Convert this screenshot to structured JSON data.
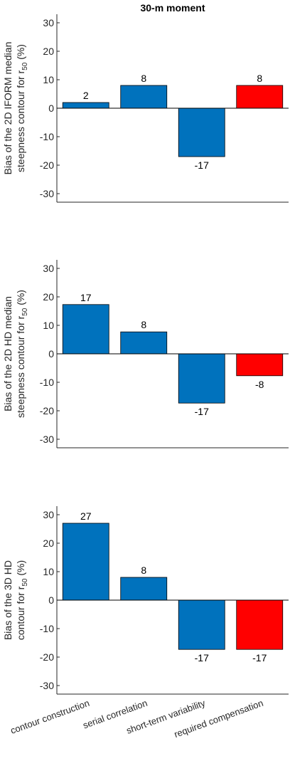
{
  "figure": {
    "title": "30-m moment"
  },
  "chart_data": [
    {
      "type": "bar",
      "title": "30-m moment",
      "ylabel_line1": "Bias of the 2D IFORM median",
      "ylabel_line2_prefix": "steepness contour for r",
      "ylabel_line2_sub": "50",
      "ylabel_line2_suffix": " (%)",
      "categories": [
        "contour construction",
        "serial correlation",
        "short-term variability",
        "required compensation"
      ],
      "values": [
        2,
        8,
        -17,
        8
      ],
      "labels": [
        "2",
        "8",
        "-17",
        "8"
      ],
      "colors": [
        "#0072BD",
        "#0072BD",
        "#0072BD",
        "#FF0000"
      ],
      "ylim": [
        -33,
        33
      ],
      "yticks": [
        -30,
        -20,
        -10,
        0,
        10,
        20,
        30
      ]
    },
    {
      "type": "bar",
      "title": "",
      "ylabel_line1": "Bias of the 2D HD median",
      "ylabel_line2_prefix": "steepness contour for r",
      "ylabel_line2_sub": "50",
      "ylabel_line2_suffix": " (%)",
      "categories": [
        "contour construction",
        "serial correlation",
        "short-term variability",
        "required compensation"
      ],
      "values": [
        17.3,
        7.7,
        -17.3,
        -7.7
      ],
      "labels": [
        "17",
        "8",
        "-17",
        "-8"
      ],
      "colors": [
        "#0072BD",
        "#0072BD",
        "#0072BD",
        "#FF0000"
      ],
      "ylim": [
        -33,
        33
      ],
      "yticks": [
        -30,
        -20,
        -10,
        0,
        10,
        20,
        30
      ]
    },
    {
      "type": "bar",
      "title": "",
      "ylabel_line1": "Bias of the 3D HD",
      "ylabel_line2_prefix": "contour for r",
      "ylabel_line2_sub": "50",
      "ylabel_line2_suffix": " (%)",
      "categories": [
        "contour construction",
        "serial correlation",
        "short-term variability",
        "required compensation"
      ],
      "values": [
        27,
        8,
        -17.3,
        -17.3
      ],
      "labels": [
        "27",
        "8",
        "-17",
        "-17"
      ],
      "colors": [
        "#0072BD",
        "#0072BD",
        "#0072BD",
        "#FF0000"
      ],
      "ylim": [
        -33,
        33
      ],
      "yticks": [
        -30,
        -20,
        -10,
        0,
        10,
        20,
        30
      ]
    }
  ]
}
